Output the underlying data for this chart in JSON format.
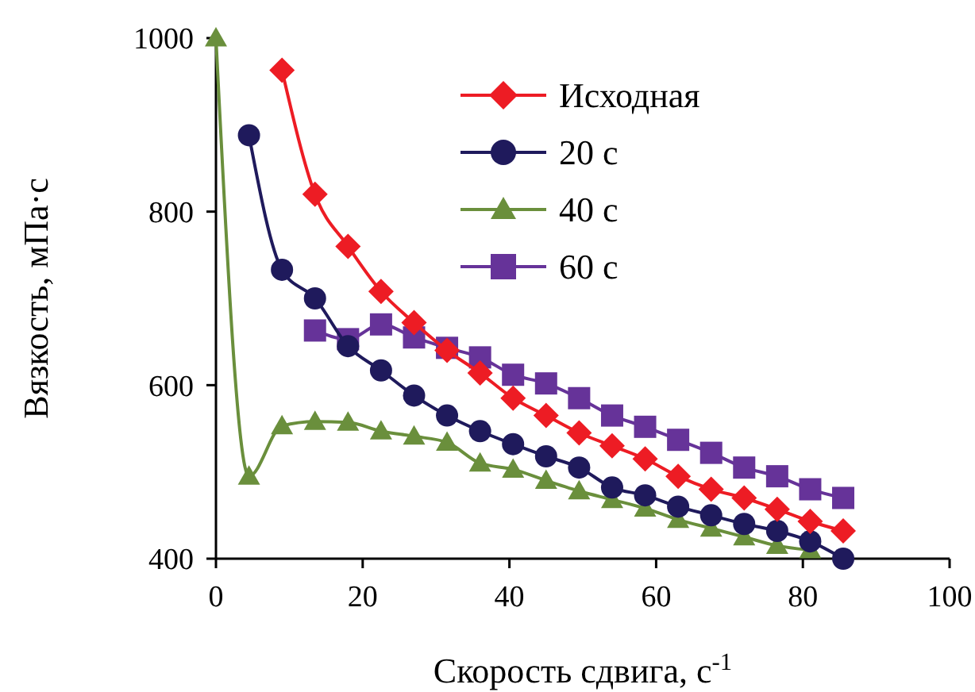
{
  "chart_data": {
    "type": "line",
    "xlabel": "Скорость сдвига, с$^{-1}$",
    "ylabel": "Вязкость, мПа·с",
    "xlim": [
      0,
      100
    ],
    "xticks": [
      0,
      20,
      40,
      60,
      80,
      100
    ],
    "ylim": [
      400,
      1000
    ],
    "yticks": [
      400,
      600,
      800,
      1000
    ],
    "grid": false,
    "legend": "top right",
    "line_style": "solid",
    "series": [
      {
        "name": "Исходная",
        "color": "#ed1c24",
        "marker": "diamond",
        "x": [
          9,
          13.5,
          18,
          22.5,
          27,
          31.5,
          36,
          40.5,
          45,
          49.5,
          54,
          58.5,
          63,
          67.5,
          72,
          76.5,
          81,
          85.5
        ],
        "values": [
          963,
          820,
          760,
          708,
          672,
          640,
          614,
          585,
          565,
          545,
          530,
          515,
          495,
          480,
          470,
          457,
          443,
          432
        ]
      },
      {
        "name": "20 с",
        "color": "#1f1a5c",
        "marker": "circle",
        "x": [
          4.5,
          9,
          13.5,
          18,
          22.5,
          27,
          31.5,
          36,
          40.5,
          45,
          49.5,
          54,
          58.5,
          63,
          67.5,
          72,
          76.5,
          81,
          85.5
        ],
        "values": [
          888,
          733,
          700,
          645,
          617,
          588,
          565,
          547,
          532,
          518,
          505,
          482,
          473,
          460,
          450,
          440,
          432,
          420,
          400
        ]
      },
      {
        "name": "40 с",
        "color": "#6a8f3c",
        "marker": "triangle",
        "x": [
          0,
          4.5,
          9,
          13.5,
          18,
          22.5,
          27,
          31.5,
          36,
          40.5,
          45,
          49.5,
          54,
          58.5,
          63,
          67.5,
          72,
          76.5,
          81
        ],
        "values": [
          1000,
          495,
          553,
          558,
          557,
          547,
          541,
          534,
          510,
          503,
          490,
          478,
          468,
          458,
          445,
          435,
          425,
          415,
          410
        ]
      },
      {
        "name": "60 с",
        "color": "#663399",
        "marker": "square",
        "x": [
          13.5,
          18,
          22.5,
          27,
          31.5,
          36,
          40.5,
          45,
          49.5,
          54,
          58.5,
          63,
          67.5,
          72,
          76.5,
          81,
          85.5
        ],
        "values": [
          663,
          653,
          670,
          655,
          643,
          632,
          612,
          602,
          585,
          565,
          552,
          537,
          522,
          505,
          495,
          480,
          470
        ]
      }
    ]
  }
}
